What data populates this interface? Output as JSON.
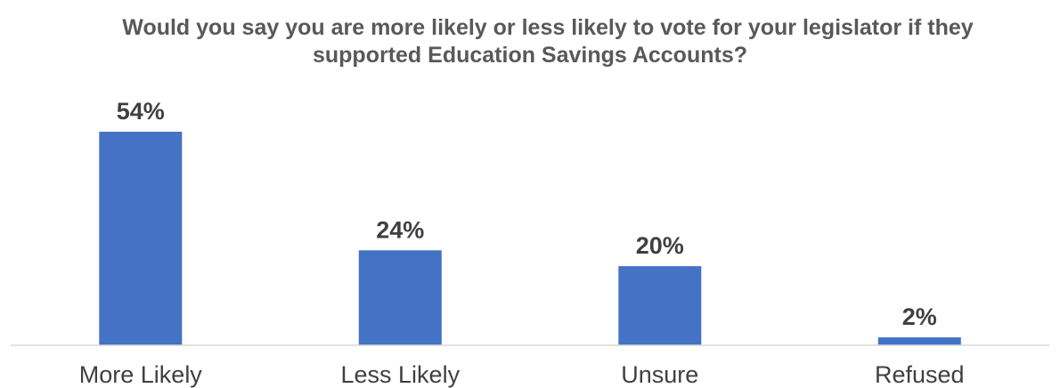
{
  "chart_data": {
    "type": "bar",
    "title_line1": "Would you say you are more likely or less likely to vote for your legislator if they",
    "title_line2": "supported Education Savings Accounts?",
    "categories": [
      "More Likely",
      "Less Likely",
      "Unsure",
      "Refused"
    ],
    "values": [
      54,
      24,
      20,
      2
    ],
    "data_labels": [
      "54%",
      "24%",
      "20%",
      "2%"
    ],
    "ylim": [
      0,
      54
    ],
    "bar_color": "#4472C4",
    "grid": false
  }
}
